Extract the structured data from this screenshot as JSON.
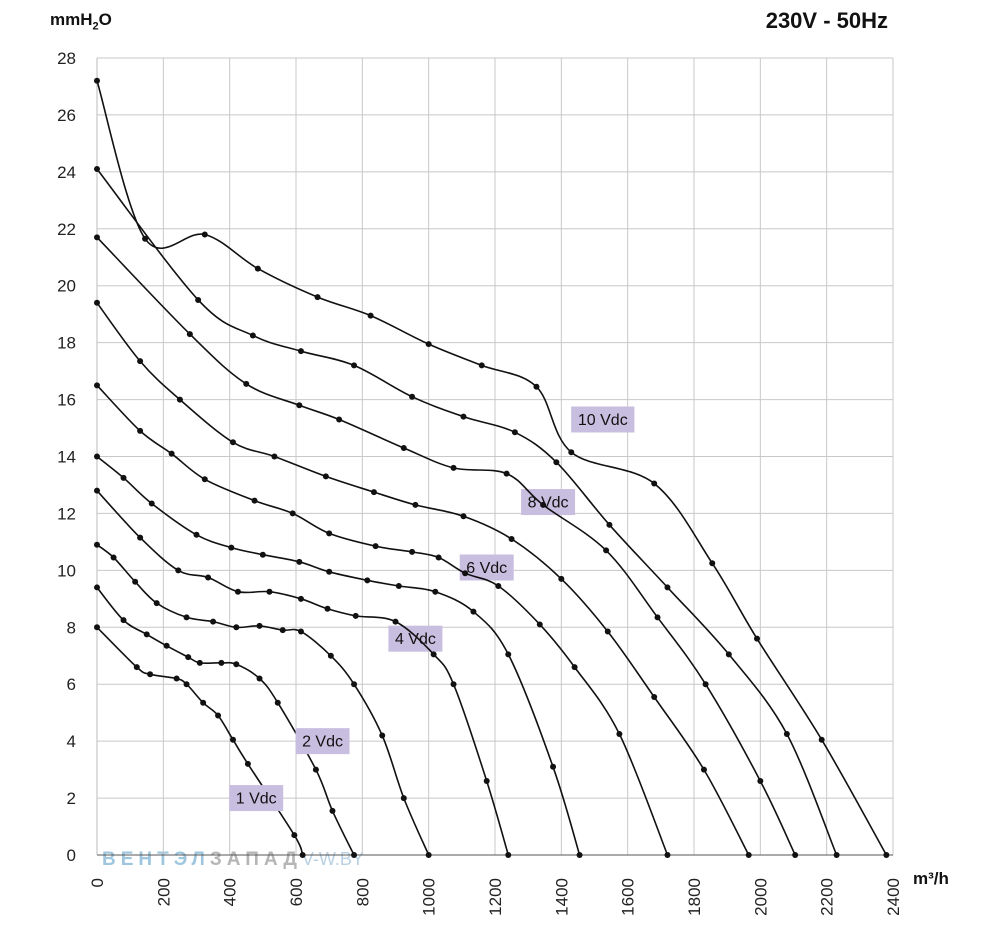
{
  "header": {
    "y_unit_main": "mmH",
    "y_unit_sub": "2",
    "y_unit_tail": "O",
    "subtitle": "230V - 50Hz",
    "x_unit": "m³/h"
  },
  "watermark": {
    "part1": "ВЕНТЭЛ",
    "part2": "ЗАПАД",
    "part3": "V-W.BY"
  },
  "colors": {
    "curve": "#111111",
    "grid": "#c8c8c8",
    "label_bg": "#c8bedf"
  },
  "chart_data": {
    "type": "line",
    "xlabel": "m³/h",
    "ylabel": "mmH2O",
    "xlim": [
      0,
      2400
    ],
    "ylim": [
      0,
      28
    ],
    "xticks": [
      0,
      200,
      400,
      600,
      800,
      1000,
      1200,
      1400,
      1600,
      1800,
      2000,
      2200,
      2400
    ],
    "yticks": [
      0,
      2,
      4,
      6,
      8,
      10,
      12,
      14,
      16,
      18,
      20,
      22,
      24,
      26,
      28
    ],
    "grid": true,
    "series": [
      {
        "name": "1 Vdc",
        "label_at": [
          480,
          2
        ],
        "points": [
          [
            0,
            8.0
          ],
          [
            120,
            6.6
          ],
          [
            160,
            6.35
          ],
          [
            240,
            6.2
          ],
          [
            270,
            6.0
          ],
          [
            320,
            5.35
          ],
          [
            365,
            4.9
          ],
          [
            410,
            4.05
          ],
          [
            455,
            3.2
          ],
          [
            595,
            0.7
          ],
          [
            620,
            0
          ]
        ]
      },
      {
        "name": "2 Vdc",
        "label_at": [
          680,
          4
        ],
        "points": [
          [
            0,
            9.4
          ],
          [
            80,
            8.25
          ],
          [
            150,
            7.75
          ],
          [
            210,
            7.35
          ],
          [
            275,
            6.95
          ],
          [
            310,
            6.75
          ],
          [
            375,
            6.75
          ],
          [
            420,
            6.7
          ],
          [
            490,
            6.2
          ],
          [
            545,
            5.35
          ],
          [
            660,
            3.0
          ],
          [
            710,
            1.55
          ],
          [
            775,
            0
          ]
        ]
      },
      {
        "name": "4 Vdc",
        "label_at": [
          960,
          7.6
        ],
        "points": [
          [
            0,
            10.9
          ],
          [
            50,
            10.45
          ],
          [
            115,
            9.6
          ],
          [
            180,
            8.85
          ],
          [
            270,
            8.35
          ],
          [
            350,
            8.2
          ],
          [
            420,
            8.0
          ],
          [
            490,
            8.05
          ],
          [
            560,
            7.9
          ],
          [
            615,
            7.85
          ],
          [
            705,
            7.0
          ],
          [
            775,
            6.0
          ],
          [
            860,
            4.2
          ],
          [
            925,
            2.0
          ],
          [
            1000,
            0
          ]
        ]
      },
      {
        "name": "6 Vdc",
        "label_at": [
          1175,
          10.1
        ],
        "points": [
          [
            0,
            12.8
          ],
          [
            130,
            11.15
          ],
          [
            245,
            10.0
          ],
          [
            335,
            9.75
          ],
          [
            425,
            9.25
          ],
          [
            520,
            9.25
          ],
          [
            615,
            9.0
          ],
          [
            695,
            8.65
          ],
          [
            780,
            8.4
          ],
          [
            900,
            8.2
          ],
          [
            1015,
            7.05
          ],
          [
            1075,
            6.0
          ],
          [
            1175,
            2.6
          ],
          [
            1240,
            0
          ]
        ]
      },
      {
        "name": "8 Vdc",
        "label_at": [
          1360,
          12.4
        ],
        "points": [
          [
            0,
            14.0
          ],
          [
            80,
            13.25
          ],
          [
            165,
            12.35
          ],
          [
            300,
            11.25
          ],
          [
            405,
            10.8
          ],
          [
            500,
            10.55
          ],
          [
            610,
            10.3
          ],
          [
            700,
            9.95
          ],
          [
            815,
            9.65
          ],
          [
            910,
            9.45
          ],
          [
            1020,
            9.25
          ],
          [
            1135,
            8.55
          ],
          [
            1240,
            7.05
          ],
          [
            1375,
            3.1
          ],
          [
            1455,
            0
          ]
        ]
      },
      {
        "name": "10 Vdc",
        "label_at": [
          1525,
          15.3
        ],
        "points": [
          [
            0,
            16.5
          ],
          [
            130,
            14.9
          ],
          [
            225,
            14.1
          ],
          [
            325,
            13.2
          ],
          [
            475,
            12.45
          ],
          [
            590,
            12.0
          ],
          [
            700,
            11.3
          ],
          [
            840,
            10.85
          ],
          [
            950,
            10.65
          ],
          [
            1030,
            10.45
          ],
          [
            1110,
            9.9
          ],
          [
            1210,
            9.45
          ],
          [
            1335,
            8.1
          ],
          [
            1440,
            6.6
          ],
          [
            1575,
            4.25
          ],
          [
            1720,
            0
          ]
        ]
      },
      {
        "name": "",
        "points": [
          [
            0,
            19.4
          ],
          [
            130,
            17.35
          ],
          [
            250,
            16.0
          ],
          [
            410,
            14.5
          ],
          [
            535,
            14.0
          ],
          [
            690,
            13.3
          ],
          [
            835,
            12.75
          ],
          [
            960,
            12.3
          ],
          [
            1105,
            11.9
          ],
          [
            1250,
            11.1
          ],
          [
            1400,
            9.7
          ],
          [
            1540,
            7.85
          ],
          [
            1680,
            5.55
          ],
          [
            1830,
            3.0
          ],
          [
            1965,
            0
          ]
        ]
      },
      {
        "name": "",
        "points": [
          [
            0,
            21.7
          ],
          [
            280,
            18.3
          ],
          [
            450,
            16.55
          ],
          [
            610,
            15.8
          ],
          [
            730,
            15.3
          ],
          [
            925,
            14.3
          ],
          [
            1075,
            13.6
          ],
          [
            1235,
            13.4
          ],
          [
            1345,
            12.3
          ],
          [
            1535,
            10.7
          ],
          [
            1690,
            8.35
          ],
          [
            1835,
            6.0
          ],
          [
            2000,
            2.6
          ],
          [
            2105,
            0
          ]
        ]
      },
      {
        "name": "",
        "points": [
          [
            0,
            24.1
          ],
          [
            305,
            19.5
          ],
          [
            470,
            18.25
          ],
          [
            615,
            17.7
          ],
          [
            775,
            17.2
          ],
          [
            950,
            16.1
          ],
          [
            1105,
            15.4
          ],
          [
            1260,
            14.85
          ],
          [
            1385,
            13.8
          ],
          [
            1545,
            11.6
          ],
          [
            1720,
            9.4
          ],
          [
            1905,
            7.05
          ],
          [
            2080,
            4.25
          ],
          [
            2230,
            0
          ]
        ]
      },
      {
        "name": "",
        "points": [
          [
            0,
            27.2
          ],
          [
            145,
            21.65
          ],
          [
            325,
            21.8
          ],
          [
            485,
            20.6
          ],
          [
            665,
            19.6
          ],
          [
            825,
            18.95
          ],
          [
            1000,
            17.95
          ],
          [
            1160,
            17.2
          ],
          [
            1325,
            16.45
          ],
          [
            1430,
            14.15
          ],
          [
            1680,
            13.05
          ],
          [
            1855,
            10.25
          ],
          [
            1990,
            7.6
          ],
          [
            2185,
            4.05
          ],
          [
            2380,
            0
          ]
        ]
      }
    ]
  }
}
